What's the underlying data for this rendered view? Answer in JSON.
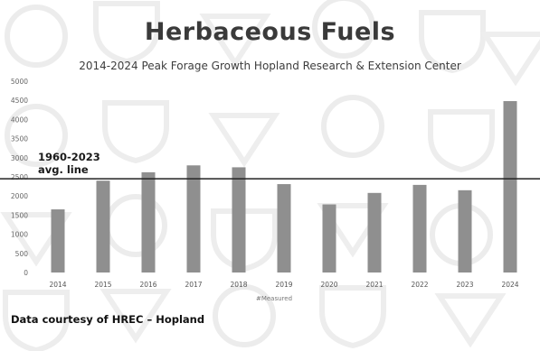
{
  "chart_data": {
    "type": "bar",
    "title": "Herbaceous Fuels",
    "subtitle": "2014-2024 Peak Forage Growth Hopland Research & Extension Center",
    "legend": "#Measured",
    "categories": [
      "2014",
      "2015",
      "2016",
      "2017",
      "2018",
      "2019",
      "2020",
      "2021",
      "2022",
      "2023",
      "2024"
    ],
    "series": [
      {
        "values": [
          1650,
          2400,
          2620,
          2800,
          2750,
          2310,
          1780,
          2080,
          2290,
          2150,
          4480
        ]
      }
    ],
    "ylim": [
      0,
      5000
    ],
    "yticks": [
      "0",
      "500",
      "1000",
      "1500",
      "2000",
      "2500",
      "3000",
      "3500",
      "4000",
      "4500",
      "5000"
    ],
    "reference_line": {
      "value": 2450,
      "label_line1": "1960-2023",
      "label_line2": "avg. line"
    },
    "bar_color": "#8f8f8f",
    "grid": false
  },
  "footer": {
    "credit": "Data courtesy of HREC – Hopland"
  }
}
